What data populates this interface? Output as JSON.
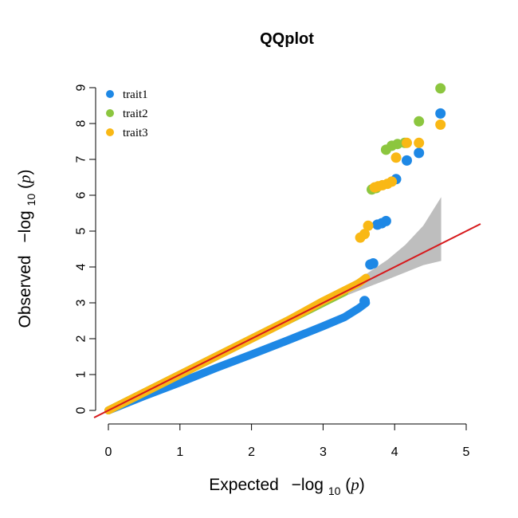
{
  "chart_data": {
    "type": "scatter",
    "title": "QQplot",
    "xlabel": "Expected",
    "ylabel": "Observed",
    "axis_math": {
      "prefix": "−log",
      "subscript": "10",
      "argument": "p"
    },
    "xlim": [
      0,
      5
    ],
    "ylim": [
      0,
      9
    ],
    "xticks": [
      "0",
      "1",
      "2",
      "3",
      "4",
      "5"
    ],
    "yticks": [
      "0",
      "1",
      "2",
      "3",
      "4",
      "5",
      "6",
      "7",
      "8",
      "9"
    ],
    "legend_position": "top-left",
    "reference_line": {
      "color": "#d7191c",
      "slope": 1,
      "intercept": 0
    },
    "confidence_band": {
      "color": "#bebebe",
      "x": [
        2.6,
        3.0,
        3.3,
        3.6,
        3.9,
        4.15,
        4.4,
        4.65
      ],
      "lower": [
        2.55,
        2.92,
        3.18,
        3.42,
        3.65,
        3.85,
        4.05,
        4.17
      ],
      "upper": [
        2.65,
        3.08,
        3.45,
        3.8,
        4.2,
        4.62,
        5.15,
        5.95
      ]
    },
    "series": [
      {
        "name": "trait1",
        "color": "#1e88e5",
        "curve_x": [
          0.0,
          0.5,
          1.0,
          1.5,
          2.0,
          2.5,
          3.0,
          3.3,
          3.5,
          3.6
        ],
        "curve_y": [
          0.0,
          0.4,
          0.78,
          1.18,
          1.56,
          1.95,
          2.35,
          2.6,
          2.85,
          3.0
        ],
        "points": [
          [
            3.58,
            3.05
          ],
          [
            3.66,
            4.07
          ],
          [
            3.7,
            4.1
          ],
          [
            3.76,
            5.18
          ],
          [
            3.82,
            5.22
          ],
          [
            3.88,
            5.28
          ],
          [
            4.02,
            6.45
          ],
          [
            4.17,
            6.97
          ],
          [
            4.34,
            7.18
          ],
          [
            4.64,
            8.28
          ]
        ]
      },
      {
        "name": "trait2",
        "color": "#8cc63f",
        "curve_x": [
          0.0,
          0.5,
          1.0,
          1.5,
          2.0,
          2.5,
          3.0,
          3.3
        ],
        "curve_y": [
          0.0,
          0.5,
          1.0,
          1.5,
          2.0,
          2.5,
          3.0,
          3.3
        ],
        "points": [
          [
            3.68,
            6.16
          ],
          [
            3.74,
            6.2
          ],
          [
            3.88,
            7.27
          ],
          [
            3.96,
            7.38
          ],
          [
            4.04,
            7.43
          ],
          [
            4.14,
            7.46
          ],
          [
            4.34,
            8.06
          ],
          [
            4.64,
            8.98
          ]
        ]
      },
      {
        "name": "trait3",
        "color": "#f9b815",
        "curve_x": [
          0.0,
          0.5,
          1.0,
          1.5,
          2.0,
          2.5,
          3.0,
          3.3,
          3.5,
          3.6
        ],
        "curve_y": [
          0.0,
          0.5,
          1.0,
          1.5,
          2.0,
          2.5,
          3.05,
          3.35,
          3.55,
          3.7
        ],
        "points": [
          [
            3.52,
            4.82
          ],
          [
            3.58,
            4.92
          ],
          [
            3.63,
            5.15
          ],
          [
            3.72,
            6.22
          ],
          [
            3.77,
            6.25
          ],
          [
            3.83,
            6.28
          ],
          [
            3.9,
            6.32
          ],
          [
            3.96,
            6.38
          ],
          [
            4.02,
            7.05
          ],
          [
            4.17,
            7.46
          ],
          [
            4.34,
            7.46
          ],
          [
            4.64,
            7.97
          ]
        ]
      }
    ]
  }
}
